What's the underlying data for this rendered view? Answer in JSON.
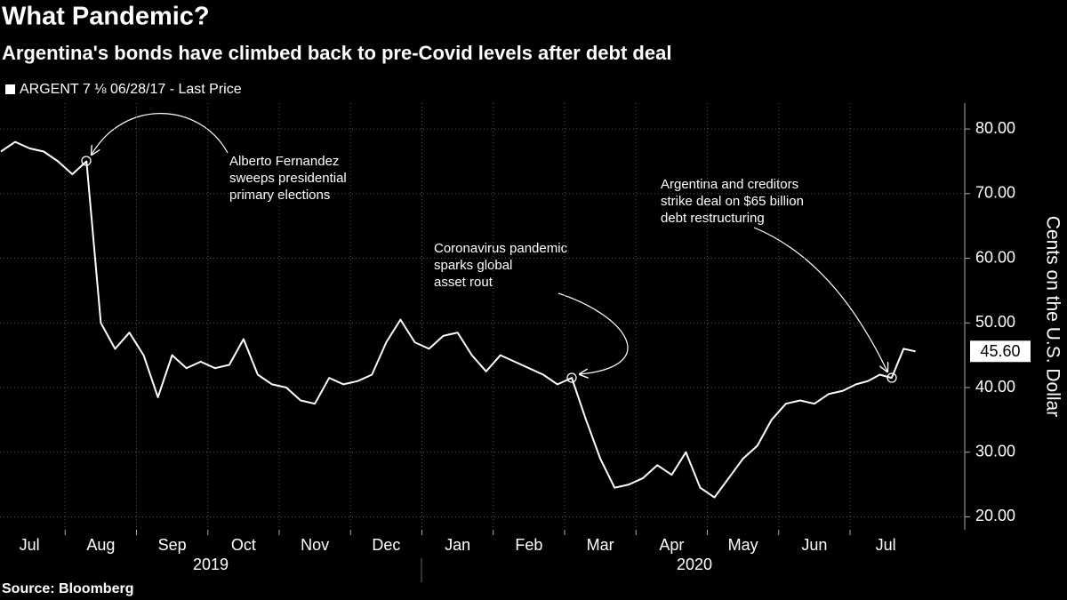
{
  "chart_data": {
    "type": "line",
    "title": "What Pandemic?",
    "subtitle": "Argentina's bonds have climbed back to pre-Covid levels after debt deal",
    "source": "Source: Bloomberg",
    "y_axis_label": "Cents on the U.S. Dollar",
    "categories": [
      "Jul",
      "Aug",
      "Sep",
      "Oct",
      "Nov",
      "Dec",
      "Jan",
      "Feb",
      "Mar",
      "Apr",
      "May",
      "Jun",
      "Jul"
    ],
    "years": [
      "2019",
      "2020"
    ],
    "series": [
      {
        "name": "ARGENT 7 ⅛ 06/28/17 - Last Price",
        "color": "#ffffff",
        "values": [
          [
            76.5,
            78,
            77,
            76.5,
            75
          ],
          [
            73,
            75,
            50,
            46,
            48.5
          ],
          [
            45,
            38.5,
            45,
            43,
            44
          ],
          [
            43,
            43.5,
            47.5,
            42,
            40.5
          ],
          [
            40,
            38,
            37.5,
            41.5,
            40.5
          ],
          [
            41,
            42,
            47,
            50.5,
            47
          ],
          [
            46,
            48,
            48.5,
            45,
            42.5
          ],
          [
            45,
            44,
            43,
            42,
            40.5
          ],
          [
            41.5,
            35,
            29,
            24.5,
            25
          ],
          [
            26,
            28,
            26.5,
            30,
            24.5
          ],
          [
            23,
            26,
            29,
            31,
            35
          ],
          [
            37.5,
            38,
            37.5,
            39,
            39.5
          ],
          [
            40.5,
            41,
            42,
            41.5,
            46,
            45.6
          ]
        ]
      }
    ],
    "last_value_label": "45.60",
    "annotations": [
      {
        "lines": [
          "Alberto Fernandez",
          "sweeps presidential",
          "primary elections"
        ]
      },
      {
        "lines": [
          "Coronavirus pandemic",
          "sparks global",
          "asset rout"
        ]
      },
      {
        "lines": [
          "Argentina and creditors",
          "strike deal on $65 billion",
          "debt restructuring"
        ]
      }
    ],
    "ylim": [
      18,
      84
    ],
    "yticks": [
      {
        "value": 20,
        "label": "20.00"
      },
      {
        "value": 30,
        "label": "30.00"
      },
      {
        "value": 40,
        "label": "40.00"
      },
      {
        "value": 50,
        "label": "50.00"
      },
      {
        "value": 60,
        "label": "60.00"
      },
      {
        "value": 70,
        "label": "70.00"
      },
      {
        "value": 80,
        "label": "80.00"
      }
    ],
    "grid": true
  }
}
